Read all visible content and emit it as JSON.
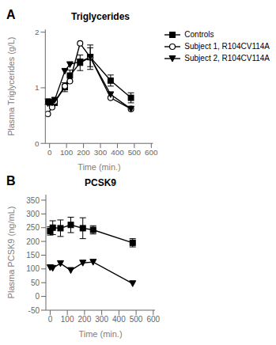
{
  "chart_data": [
    {
      "type": "line",
      "title": "Triglycerides",
      "annotations": [
        "A"
      ],
      "xlabel": "Time (min.)",
      "ylabel": "Plasma Triglycerides (g/L)",
      "xlim": [
        -25,
        610
      ],
      "ylim": [
        0,
        2.05
      ],
      "xticks": [
        0,
        100,
        200,
        300,
        400,
        500,
        600
      ],
      "yticks": [
        0,
        1,
        2
      ],
      "grid": false,
      "legend": "right",
      "x": [
        -10,
        15,
        30,
        90,
        120,
        180,
        240,
        360,
        480
      ],
      "series": [
        {
          "name": "Controls",
          "color": "black",
          "marker": "square",
          "values": [
            0.75,
            0.73,
            0.74,
            1.01,
            1.22,
            1.45,
            1.55,
            1.13,
            0.82
          ],
          "errors": [
            0.05,
            0.06,
            0.06,
            0.08,
            0.1,
            0.14,
            0.17,
            0.1,
            0.09
          ]
        },
        {
          "name": "Subject 1, R104CV114A",
          "color": "black",
          "marker": "open_circle",
          "values": [
            0.53,
            0.65,
            0.75,
            1.03,
            1.12,
            1.8,
            1.55,
            0.82,
            0.62
          ],
          "errors": [
            0,
            0,
            0,
            0,
            0,
            0,
            0.22,
            0,
            0
          ]
        },
        {
          "name": "Subject 2, R104CV114A",
          "color": "black",
          "marker": "triangle_down",
          "values": [
            0.72,
            0.73,
            0.78,
            1.3,
            1.42,
            1.47,
            1.55,
            0.88,
            0.62
          ],
          "errors": [
            0,
            0,
            0,
            0,
            0,
            0,
            0,
            0,
            0
          ]
        }
      ]
    },
    {
      "type": "line",
      "title": "PCSK9",
      "annotations": [
        "B"
      ],
      "xlabel": "Time (min.)",
      "ylabel": "Plasma PCSK9 (ng/mL)",
      "xlim": [
        -25,
        610
      ],
      "ylim": [
        -50,
        370
      ],
      "xticks": [
        0,
        100,
        200,
        300,
        400,
        500,
        600
      ],
      "yticks": [
        -50,
        0,
        50,
        100,
        150,
        200,
        250,
        300,
        350
      ],
      "grid": false,
      "x": [
        0,
        15,
        60,
        120,
        190,
        250,
        480
      ],
      "series": [
        {
          "color": "black",
          "marker": "square",
          "values": [
            238,
            250,
            248,
            260,
            248,
            242,
            195
          ],
          "errors": [
            15,
            25,
            30,
            28,
            38,
            15,
            15
          ]
        },
        {
          "color": "black",
          "marker": "triangle_down",
          "values": [
            105,
            103,
            120,
            95,
            122,
            125,
            47
          ],
          "errors": [
            0,
            0,
            0,
            0,
            0,
            0,
            0
          ]
        }
      ]
    }
  ]
}
